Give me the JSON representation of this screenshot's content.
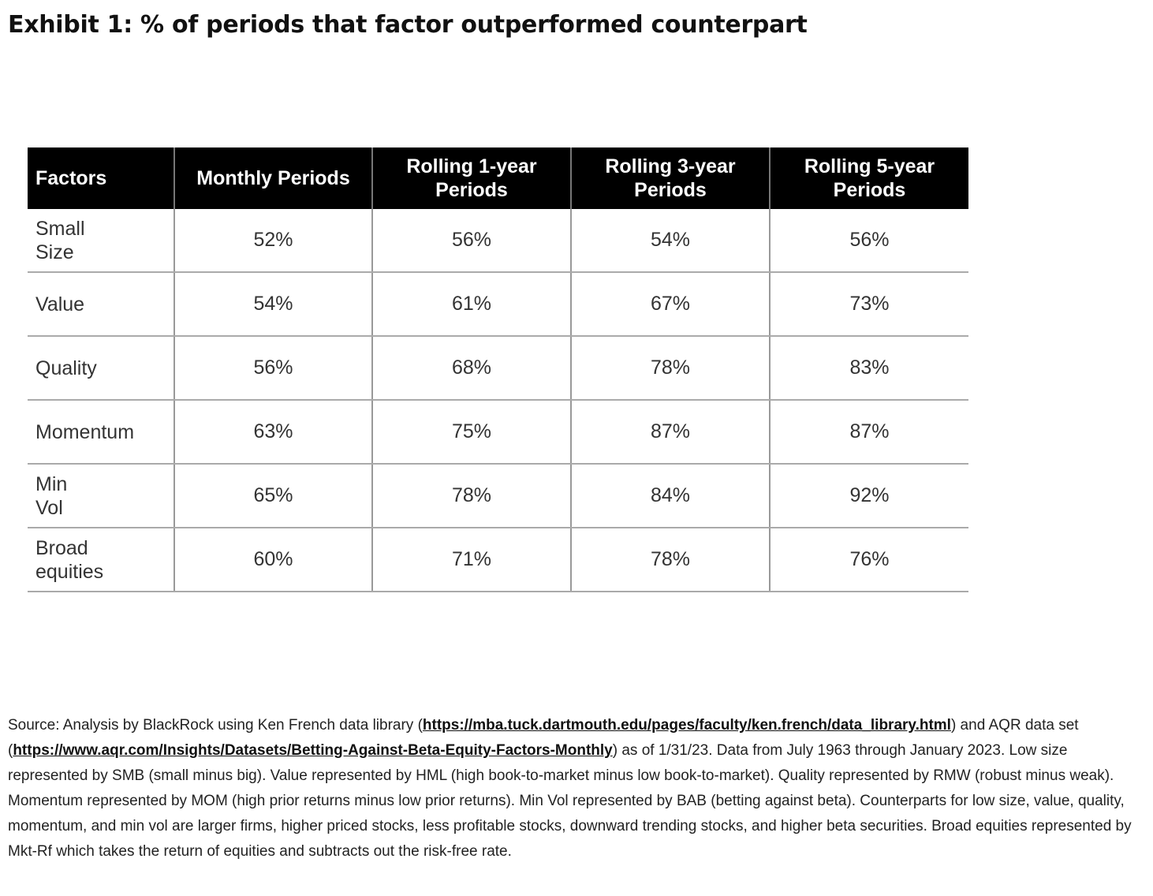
{
  "title": "Exhibit 1: % of periods that factor outperformed counterpart",
  "table": {
    "headers": [
      "Factors",
      "Monthly Periods",
      "Rolling 1-year Periods",
      "Rolling 3-year Periods",
      "Rolling 5-year Periods"
    ],
    "rows": [
      [
        "Small Size",
        "52%",
        "56%",
        "54%",
        "56%"
      ],
      [
        "Value",
        "54%",
        "61%",
        "67%",
        "73%"
      ],
      [
        "Quality",
        "56%",
        "68%",
        "78%",
        "83%"
      ],
      [
        "Momentum",
        "63%",
        "75%",
        "87%",
        "87%"
      ],
      [
        "Min Vol",
        "65%",
        "78%",
        "84%",
        "92%"
      ],
      [
        "Broad equities",
        "60%",
        "71%",
        "78%",
        "76%"
      ]
    ]
  },
  "source": {
    "part1": "Source: Analysis by BlackRock using Ken French data library (",
    "link1": "https://mba.tuck.dartmouth.edu/pages/faculty/ken.french/data_library.html",
    "part2": ") and AQR data set (",
    "link2": "https://www.aqr.com/Insights/Datasets/Betting-Against-Beta-Equity-Factors-Monthly",
    "part3": ") as of 1/31/23. Data from July 1963 through January 2023. Low size represented by SMB (small minus big). Value represented by HML (high book-to-market minus low book-to-market). Quality represented by RMW (robust minus weak). Momentum represented by MOM (high prior returns minus low prior returns). Min Vol represented by BAB (betting against beta). Counterparts for low size, value, quality, momentum, and min vol are larger firms, higher priced stocks, less profitable stocks, downward trending stocks, and higher beta securities. Broad equities represented by Mkt-Rf which takes the return of equities and subtracts out the risk-free rate."
  }
}
